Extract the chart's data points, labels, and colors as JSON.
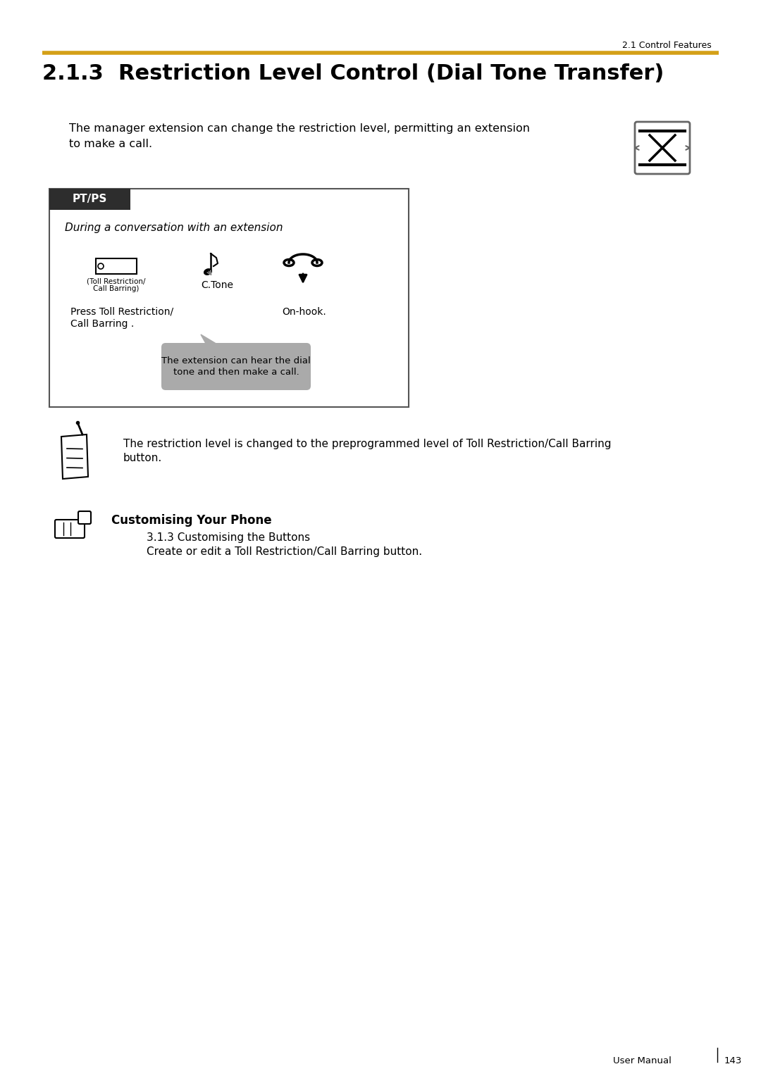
{
  "page_bg": "#ffffff",
  "header_section_text": "2.1 Control Features",
  "gold_line_color": "#D4A017",
  "section_number": "2.1.3",
  "section_title": "  Restriction Level Control (Dial Tone Transfer)",
  "intro_text_line1": "The manager extension can change the restriction level, permitting an extension",
  "intro_text_line2": "to make a call.",
  "pt_ps_label": "PT/PS",
  "pt_ps_bg": "#2d2d2d",
  "pt_ps_text_color": "#ffffff",
  "box_border_color": "#555555",
  "conversation_text": "During a conversation with an extension",
  "button_label_1": "(Toll Restriction/",
  "button_label_2": "Call Barring)",
  "ctone_label": "C.Tone",
  "press_label_1": "Press Toll Restriction/",
  "press_label_2": "Call Barring .",
  "onhook_label": "On-hook.",
  "bubble_text": "The extension can hear the dial\ntone and then make a call.",
  "bubble_bg": "#aaaaaa",
  "note_text_line1": "The restriction level is changed to the preprogrammed level of Toll Restriction/Call Barring",
  "note_text_line2": "button.",
  "customising_title": "Customising Your Phone",
  "customising_line1": "3.1.3 Customising the Buttons",
  "customising_line2": "Create or edit a Toll Restriction/Call Barring button.",
  "footer_text": "User Manual",
  "page_number": "143"
}
